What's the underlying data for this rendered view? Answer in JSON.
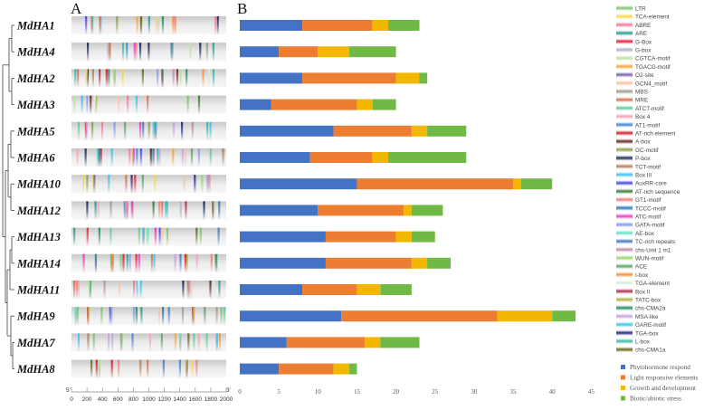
{
  "panels": {
    "a": "A",
    "b": "B"
  },
  "genes": [
    "MdHA1",
    "MdHA4",
    "MdHA2",
    "MdHA3",
    "MdHA5",
    "MdHA6",
    "MdHA10",
    "MdHA12",
    "MdHA13",
    "MdHA14",
    "MdHA11",
    "MdHA9",
    "MdHA7",
    "MdHA8"
  ],
  "scale": {
    "start_label": "5'",
    "end_label": "3'",
    "ticks": [
      "0",
      "200",
      "400",
      "600",
      "800",
      "1000",
      "1200",
      "1400",
      "1600",
      "1800",
      "2000"
    ],
    "max": 2000
  },
  "motif_legend": [
    {
      "label": "LTR",
      "color": "#7cc46a"
    },
    {
      "label": "TCA-element",
      "color": "#f7d54a"
    },
    {
      "label": "ABRE",
      "color": "#f07a96"
    },
    {
      "label": "ARE",
      "color": "#2a9d8f"
    },
    {
      "label": "G-Box",
      "color": "#e8213c"
    },
    {
      "label": "G-box",
      "color": "#b0b0cc"
    },
    {
      "label": "CGTCA-motif",
      "color": "#b8e39a"
    },
    {
      "label": "TGACG-motif",
      "color": "#f9a33a"
    },
    {
      "label": "O2-site",
      "color": "#7a5fb0"
    },
    {
      "label": "GCN4_motif",
      "color": "#f9c3a0"
    },
    {
      "label": "MBS",
      "color": "#999f8a"
    },
    {
      "label": "MRE",
      "color": "#d9714e"
    },
    {
      "label": "ATCT-motif",
      "color": "#5fcf9a"
    },
    {
      "label": "Box 4",
      "color": "#f4a3b8"
    },
    {
      "label": "AT1-motif",
      "color": "#3f86d6"
    },
    {
      "label": "AT-rich element",
      "color": "#d4202c"
    },
    {
      "label": "A-box",
      "color": "#6b2a2a"
    },
    {
      "label": "GC-motif",
      "color": "#8aa04a"
    },
    {
      "label": "P-box",
      "color": "#1e2a55"
    },
    {
      "label": "TCT-motif",
      "color": "#b0805a"
    },
    {
      "label": "Box III",
      "color": "#3fc0ef"
    },
    {
      "label": "AuxRR-core",
      "color": "#4a4ae8"
    },
    {
      "label": "AT-rich sequence",
      "color": "#3d7a3a"
    },
    {
      "label": "GT1-motif",
      "color": "#f07f7a"
    },
    {
      "label": "TCCC-motif",
      "color": "#2a7ac0"
    },
    {
      "label": "ATC-motif",
      "color": "#e83cc0"
    },
    {
      "label": "GATA-motif",
      "color": "#8a9ae8"
    },
    {
      "label": "AE-box",
      "color": "#5fe0c8"
    },
    {
      "label": "TC-rich repeats",
      "color": "#4a7ac0"
    },
    {
      "label": "chs-Unit 1 m1",
      "color": "#c08aa8"
    },
    {
      "label": "WUN-motif",
      "color": "#9ad66a"
    },
    {
      "label": "ACE",
      "color": "#5aa56a"
    },
    {
      "label": "I-box",
      "color": "#f9903a"
    },
    {
      "label": "TGA-element",
      "color": "#d8ecd8"
    },
    {
      "label": "Box II",
      "color": "#a8324a"
    },
    {
      "label": "TATC-box",
      "color": "#b0b040"
    },
    {
      "label": "chs-CMA2a",
      "color": "#2a8a6a"
    },
    {
      "label": "MSA-like",
      "color": "#c8a0e0"
    },
    {
      "label": "GARE-motif",
      "color": "#3ac8e8"
    },
    {
      "label": "TGA-box",
      "color": "#2a2a8a"
    },
    {
      "label": "L-box",
      "color": "#3ab8a0"
    },
    {
      "label": "chs-CMA1a",
      "color": "#6a6a20"
    }
  ],
  "chart_data": {
    "type": "bar",
    "stacked": true,
    "orientation": "horizontal",
    "categories": [
      "MdHA1",
      "MdHA4",
      "MdHA2",
      "MdHA3",
      "MdHA5",
      "MdHA6",
      "MdHA10",
      "MdHA12",
      "MdHA13",
      "MdHA14",
      "MdHA11",
      "MdHA9",
      "MdHA7",
      "MdHA8"
    ],
    "series": [
      {
        "name": "Phytohormone respond",
        "color": "#4472c4",
        "values": [
          8,
          5,
          8,
          4,
          12,
          9,
          15,
          10,
          11,
          11,
          8,
          13,
          6,
          5
        ]
      },
      {
        "name": "Light responsive elements",
        "color": "#ed7d31",
        "values": [
          9,
          5,
          12,
          11,
          10,
          8,
          20,
          11,
          9,
          11,
          7,
          20,
          10,
          7
        ]
      },
      {
        "name": "Growth and development",
        "color": "#f2b800",
        "values": [
          2,
          4,
          3,
          2,
          2,
          2,
          1,
          1,
          2,
          2,
          3,
          7,
          2,
          2
        ]
      },
      {
        "name": "Biotic/abiotic stress",
        "color": "#70b944",
        "values": [
          4,
          6,
          1,
          3,
          5,
          10,
          4,
          4,
          3,
          3,
          4,
          3,
          5,
          1
        ]
      }
    ],
    "xlim": [
      0,
      45
    ],
    "xticks": [
      "0",
      "5",
      "10",
      "15",
      "20",
      "25",
      "30",
      "35",
      "40",
      "45"
    ],
    "legend": "bottom-right"
  }
}
